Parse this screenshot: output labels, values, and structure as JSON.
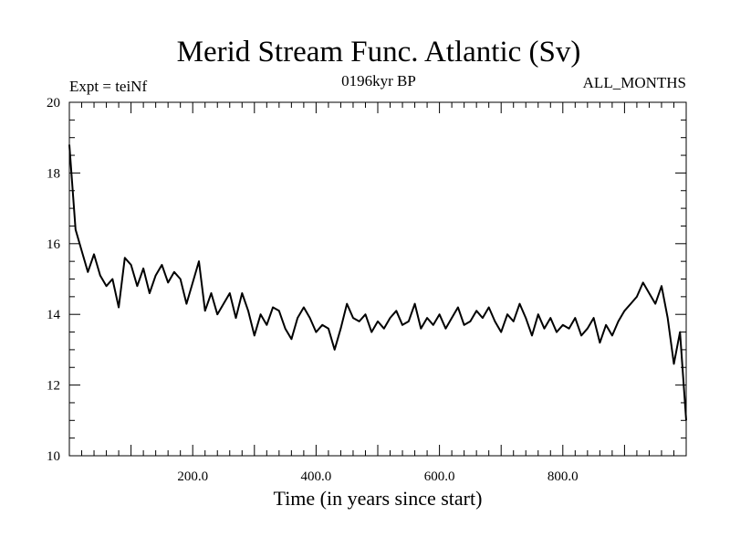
{
  "chart_data": {
    "type": "line",
    "title": "Merid Stream Func. Atlantic (Sv)",
    "experiment_label": "Expt = teiNf",
    "period_label": "0196kyr BP",
    "months_label": "ALL_MONTHS",
    "xlabel": "Time (in years since start)",
    "ylabel": "",
    "xlim": [
      0,
      1000
    ],
    "ylim": [
      10,
      20
    ],
    "x_ticks": [
      200,
      400,
      600,
      800
    ],
    "x_tick_labels": [
      "200.0",
      "400.0",
      "600.0",
      "800.0"
    ],
    "y_ticks": [
      10,
      12,
      14,
      16,
      18,
      20
    ],
    "y_tick_labels": [
      "10",
      "12",
      "14",
      "16",
      "18",
      "20"
    ],
    "x_start": 0,
    "x_step": 10,
    "values": [
      18.8,
      16.4,
      15.8,
      15.2,
      15.7,
      15.1,
      14.8,
      15.0,
      14.2,
      15.6,
      15.4,
      14.8,
      15.3,
      14.6,
      15.1,
      15.4,
      14.9,
      15.2,
      15.0,
      14.3,
      14.9,
      15.5,
      14.1,
      14.6,
      14.0,
      14.3,
      14.6,
      13.9,
      14.6,
      14.1,
      13.4,
      14.0,
      13.7,
      14.2,
      14.1,
      13.6,
      13.3,
      13.9,
      14.2,
      13.9,
      13.5,
      13.7,
      13.6,
      13.0,
      13.6,
      14.3,
      13.9,
      13.8,
      14.0,
      13.5,
      13.8,
      13.6,
      13.9,
      14.1,
      13.7,
      13.8,
      14.3,
      13.6,
      13.9,
      13.7,
      14.0,
      13.6,
      13.9,
      14.2,
      13.7,
      13.8,
      14.1,
      13.9,
      14.2,
      13.8,
      13.5,
      14.0,
      13.8,
      14.3,
      13.9,
      13.4,
      14.0,
      13.6,
      13.9,
      13.5,
      13.7,
      13.6,
      13.9,
      13.4,
      13.6,
      13.9,
      13.2,
      13.7,
      13.4,
      13.8,
      14.1,
      14.3,
      14.5,
      14.9,
      14.6,
      14.3,
      14.8,
      13.9,
      12.6,
      13.5,
      11.0
    ]
  },
  "colors": {
    "line": "#000000",
    "background": "#ffffff"
  }
}
